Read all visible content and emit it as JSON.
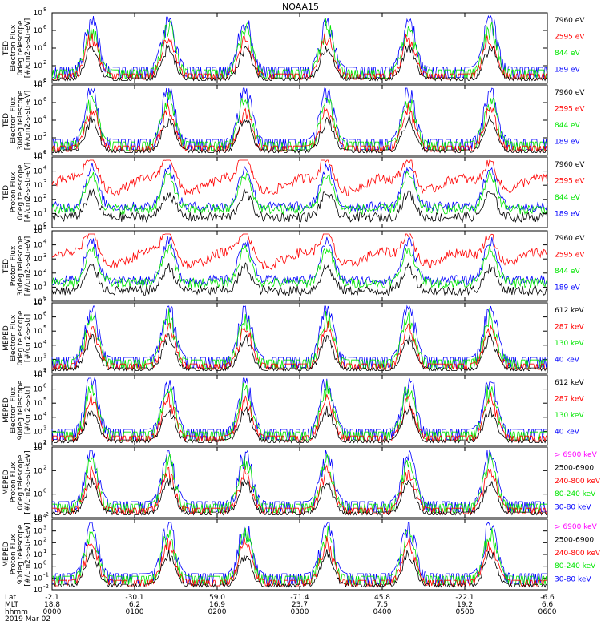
{
  "title": "NOAA15",
  "colors": {
    "blue": "#0000ff",
    "red": "#ff0000",
    "green": "#00e600",
    "black": "#000000",
    "magenta": "#ff00ff"
  },
  "chart_data": {
    "type": "line",
    "title": "NOAA15",
    "x_footer": {
      "row_labels": [
        "Lat",
        "MLT",
        "hhmm",
        "2019 Mar 02"
      ],
      "ticks": [
        {
          "lat": "-2.1",
          "mlt": "18.8",
          "hhmm": "0000"
        },
        {
          "lat": "-30.1",
          "mlt": "6.2",
          "hhmm": "0100"
        },
        {
          "lat": "59.0",
          "mlt": "16.9",
          "hhmm": "0200"
        },
        {
          "lat": "-71.4",
          "mlt": "23.7",
          "hhmm": "0300"
        },
        {
          "lat": "45.8",
          "mlt": "7.5",
          "hhmm": "0400"
        },
        {
          "lat": "-22.1",
          "mlt": "19.2",
          "hhmm": "0500"
        },
        {
          "lat": "-6.6",
          "mlt": "6.6",
          "hhmm": "0600"
        }
      ]
    },
    "panels": [
      {
        "ylabel": [
          "TED",
          "Electron Flux",
          "0deg telescope",
          "[#/cm2-s-str-eV]"
        ],
        "ytick_exponents": [
          "0",
          "2",
          "4",
          "6",
          "8"
        ],
        "ytick_base": "10",
        "legend": [
          {
            "label": "7960 eV",
            "color": "black"
          },
          {
            "label": "2595 eV",
            "color": "red"
          },
          {
            "label": "844 eV",
            "color": "green"
          },
          {
            "label": "189 eV",
            "color": "blue"
          }
        ]
      },
      {
        "ylabel": [
          "TED",
          "Electron Flux",
          "30deg telescope",
          "[#/cm2-s-str-eV]"
        ],
        "ytick_exponents": [
          "0",
          "2",
          "4",
          "6",
          "8"
        ],
        "ytick_base": "10",
        "legend": [
          {
            "label": "7960 eV",
            "color": "black"
          },
          {
            "label": "2595 eV",
            "color": "red"
          },
          {
            "label": "844 eV",
            "color": "green"
          },
          {
            "label": "189 eV",
            "color": "blue"
          }
        ]
      },
      {
        "ylabel": [
          "TED",
          "Proton Flux",
          "0deg telescope",
          "[#/cm2-s-str-eV]"
        ],
        "ytick_exponents": [
          "0",
          "1",
          "2",
          "3",
          "4",
          "5"
        ],
        "ytick_base": "10",
        "legend": [
          {
            "label": "7960 eV",
            "color": "black"
          },
          {
            "label": "2595 eV",
            "color": "red"
          },
          {
            "label": "844 eV",
            "color": "green"
          },
          {
            "label": "189 eV",
            "color": "blue"
          }
        ]
      },
      {
        "ylabel": [
          "TED",
          "Proton Flux",
          "30deg telescope",
          "[#/cm2-s-str-eV]"
        ],
        "ytick_exponents": [
          "0",
          "1",
          "2",
          "3",
          "4",
          "5"
        ],
        "ytick_base": "10",
        "legend": [
          {
            "label": "7960 eV",
            "color": "black"
          },
          {
            "label": "2595 eV",
            "color": "red"
          },
          {
            "label": "844 eV",
            "color": "green"
          },
          {
            "label": "189 eV",
            "color": "blue"
          }
        ]
      },
      {
        "ylabel": [
          "MEPED",
          "Electron Flux",
          "0deg telescope",
          "[#/cm2-s-str]"
        ],
        "ytick_exponents": [
          "2",
          "3",
          "4",
          "5",
          "6",
          "7"
        ],
        "ytick_base": "10",
        "legend": [
          {
            "label": "612 keV",
            "color": "black"
          },
          {
            "label": "287 keV",
            "color": "red"
          },
          {
            "label": "130 keV",
            "color": "green"
          },
          {
            "label": "40 keV",
            "color": "blue"
          }
        ]
      },
      {
        "ylabel": [
          "MEPED",
          "Electron Flux",
          "90deg telescope",
          "[#/cm2-s-str]"
        ],
        "ytick_exponents": [
          "2",
          "3",
          "4",
          "5",
          "6",
          "7"
        ],
        "ytick_base": "10",
        "legend": [
          {
            "label": "612 keV",
            "color": "black"
          },
          {
            "label": "287 keV",
            "color": "red"
          },
          {
            "label": "130 keV",
            "color": "green"
          },
          {
            "label": "40 keV",
            "color": "blue"
          }
        ]
      },
      {
        "ylabel": [
          "MEPED",
          "Proton Flux",
          "0deg telescope",
          "[#/cm2-s-str-keV]"
        ],
        "ytick_exponents": [
          "-2",
          "0",
          "2",
          "4"
        ],
        "ytick_base": "10",
        "legend": [
          {
            "label": "> 6900 keV",
            "color": "magenta"
          },
          {
            "label": "2500-6900",
            "color": "black"
          },
          {
            "label": "240-800 keV",
            "color": "red"
          },
          {
            "label": "80-240 keV",
            "color": "green"
          },
          {
            "label": "30-80 keV",
            "color": "blue"
          }
        ]
      },
      {
        "ylabel": [
          "MEPED",
          "Proton Flux",
          "90deg telescope",
          "[#/cm2-s-str-keV]"
        ],
        "ytick_exponents": [
          "-2",
          "-1",
          "0",
          "1",
          "2",
          "3",
          "4"
        ],
        "ytick_base": "10",
        "legend": [
          {
            "label": "> 6900 keV",
            "color": "magenta"
          },
          {
            "label": "2500-6900",
            "color": "black"
          },
          {
            "label": "240-800 keV",
            "color": "red"
          },
          {
            "label": "80-240 keV",
            "color": "green"
          },
          {
            "label": "30-80 keV",
            "color": "blue"
          }
        ]
      }
    ]
  }
}
